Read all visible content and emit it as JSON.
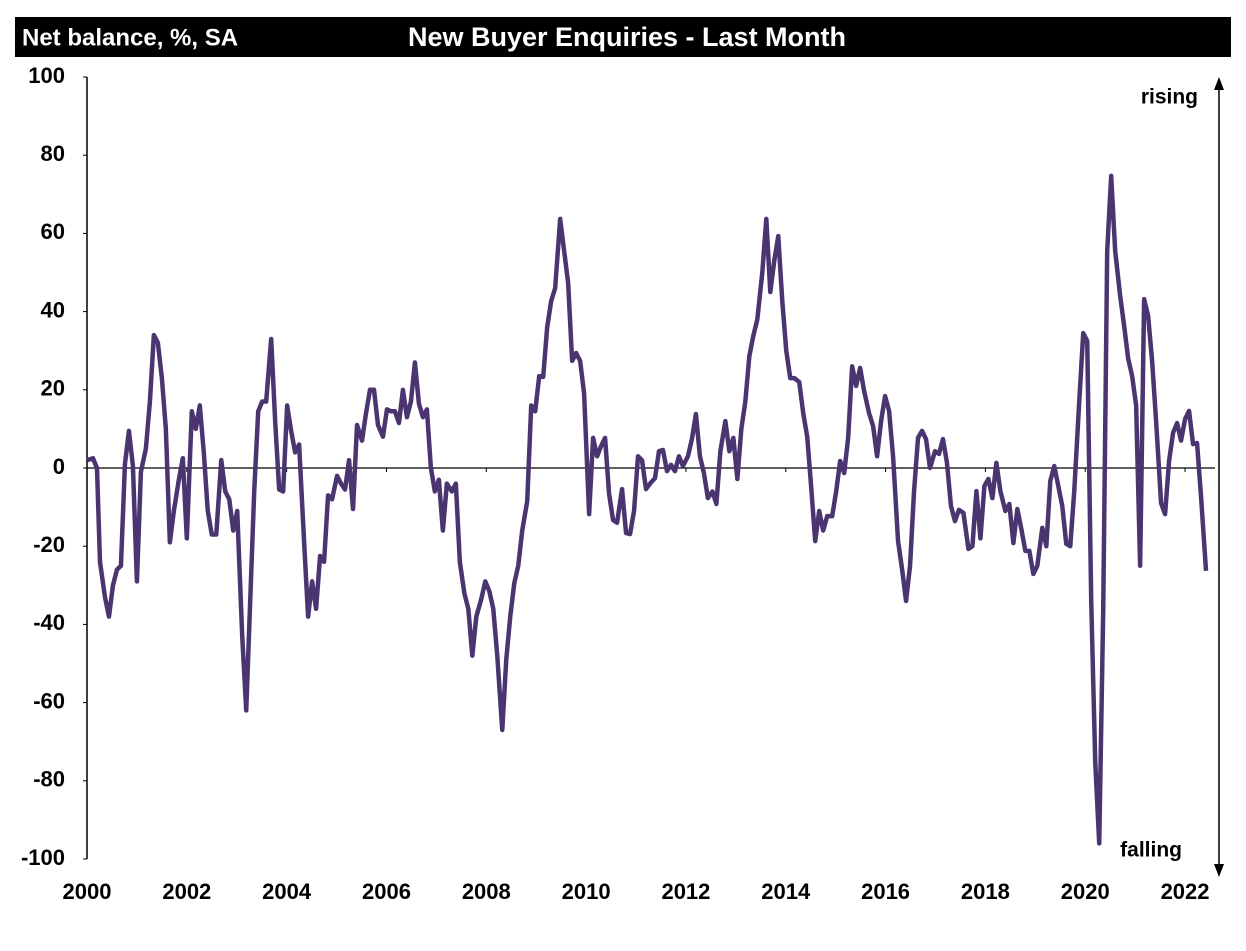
{
  "chart_data": {
    "type": "line",
    "title": "New Buyer Enquiries - Last Month",
    "ylabel": "Net balance, %, SA",
    "annotations": [
      "rising",
      "falling"
    ],
    "xlim": [
      2000,
      2022.6
    ],
    "xticks": [
      2000,
      2002,
      2004,
      2006,
      2008,
      2010,
      2012,
      2014,
      2016,
      2018,
      2020,
      2022
    ],
    "ylim": [
      -100,
      100
    ],
    "yticks": [
      -100,
      -80,
      -60,
      -40,
      -20,
      0,
      20,
      40,
      60,
      80,
      100
    ],
    "grid": false,
    "series": [
      {
        "color": "#4a3570",
        "x": [
          2000.0,
          2000.12,
          2000.2,
          2000.26,
          2000.36,
          2000.44,
          2000.52,
          2000.6,
          2000.68,
          2000.76,
          2000.84,
          2000.92,
          2001.0,
          2001.08,
          2001.18,
          2001.26,
          2001.34,
          2001.42,
          2001.5,
          2001.58,
          2001.66,
          2001.74,
          2001.84,
          2001.92,
          2002.0,
          2002.1,
          2002.18,
          2002.26,
          2002.34,
          2002.42,
          2002.5,
          2002.59,
          2002.69,
          2002.77,
          2002.85,
          2002.93,
          2003.01,
          2003.11,
          2003.19,
          2003.27,
          2003.35,
          2003.43,
          2003.51,
          2003.59,
          2003.69,
          2003.77,
          2003.85,
          2003.93,
          2004.01,
          2004.09,
          2004.17,
          2004.25,
          2004.35,
          2004.43,
          2004.51,
          2004.59,
          2004.67,
          2004.75,
          2004.83,
          2004.91,
          2005.01,
          2005.09,
          2005.17,
          2005.25,
          2005.33,
          2005.41,
          2005.51,
          2005.59,
          2005.67,
          2005.75,
          2005.83,
          2005.93,
          2006.01,
          2006.09,
          2006.17,
          2006.25,
          2006.33,
          2006.41,
          2006.49,
          2006.57,
          2006.65,
          2006.73,
          2006.81,
          2006.89,
          2006.97,
          2007.05,
          2007.13,
          2007.21,
          2007.31,
          2007.39,
          2007.47,
          2007.56,
          2007.64,
          2007.72,
          2007.8,
          2007.9,
          2007.98,
          2008.06,
          2008.14,
          2008.22,
          2008.32,
          2008.4,
          2008.48,
          2008.56,
          2008.64,
          2008.72,
          2008.82,
          2008.9,
          2008.98,
          2009.06,
          2009.14,
          2009.22,
          2009.3,
          2009.38,
          2009.48,
          2009.56,
          2009.64,
          2009.72,
          2009.8,
          2009.88,
          2009.96,
          2010.06,
          2010.14,
          2010.22,
          2010.3,
          2010.38,
          2010.46,
          2010.54,
          2010.62,
          2010.72,
          2010.8,
          2010.88,
          2010.96,
          2011.04,
          2011.12,
          2011.2,
          2011.28,
          2011.38,
          2011.46,
          2011.54,
          2011.62,
          2011.7,
          2011.78,
          2011.86,
          2011.94,
          2012.04,
          2012.12,
          2012.2,
          2012.28,
          2012.36,
          2012.44,
          2012.53,
          2012.61,
          2012.69,
          2012.79,
          2012.87,
          2012.95,
          2013.03,
          2013.11,
          2013.19,
          2013.27,
          2013.35,
          2013.43,
          2013.53,
          2013.61,
          2013.69,
          2013.77,
          2013.85,
          2013.93,
          2014.01,
          2014.09,
          2014.17,
          2014.27,
          2014.35,
          2014.43,
          2014.51,
          2014.59,
          2014.67,
          2014.75,
          2014.83,
          2014.93,
          2015.01,
          2015.09,
          2015.17,
          2015.25,
          2015.33,
          2015.41,
          2015.49,
          2015.57,
          2015.67,
          2015.75,
          2015.83,
          2015.91,
          2015.99,
          2016.07,
          2016.15,
          2016.25,
          2016.33,
          2016.41,
          2016.49,
          2016.57,
          2016.65,
          2016.73,
          2016.81,
          2016.89,
          2016.99,
          2017.07,
          2017.15,
          2017.23,
          2017.31,
          2017.39,
          2017.47,
          2017.56,
          2017.66,
          2017.74,
          2017.82,
          2017.9,
          2017.98,
          2018.06,
          2018.14,
          2018.22,
          2018.3,
          2018.4,
          2018.48,
          2018.56,
          2018.64,
          2018.72,
          2018.8,
          2018.88,
          2018.96,
          2019.04,
          2019.14,
          2019.22,
          2019.3,
          2019.38,
          2019.46,
          2019.54,
          2019.62,
          2019.7,
          2019.78,
          2019.88,
          2019.96,
          2020.04,
          2020.12,
          2020.2,
          2020.28,
          2020.36,
          2020.44,
          2020.52,
          2020.6,
          2020.7,
          2020.78,
          2020.86,
          2020.94,
          2021.02,
          2021.1,
          2021.18,
          2021.26,
          2021.34,
          2021.42,
          2021.52,
          2021.6,
          2021.68,
          2021.76,
          2021.84,
          2021.92,
          2022.0,
          2022.08,
          2022.16,
          2022.24,
          2022.32,
          2022.42
        ],
        "values": [
          2,
          2.5,
          0,
          -24,
          -33,
          -38,
          -30,
          -26,
          -25,
          1,
          9.5,
          0.5,
          -29,
          -1,
          5,
          17,
          34,
          32,
          23,
          10,
          -19,
          -11,
          -3,
          2.5,
          -18,
          14.5,
          10,
          16,
          4,
          -11,
          -17,
          -17,
          2,
          -6,
          -8,
          -16,
          -11,
          -43,
          -62,
          -34,
          -6,
          14.5,
          17,
          17,
          33,
          12,
          -5.5,
          -6,
          16,
          9.5,
          4,
          6,
          -19,
          -38,
          -29,
          -36,
          -22.5,
          -24,
          -7,
          -8,
          -2,
          -4,
          -5.5,
          2,
          -10.5,
          11,
          7,
          14,
          20,
          20,
          11,
          8,
          15,
          14.5,
          14.5,
          11.5,
          20,
          13,
          17,
          27,
          16.5,
          13,
          15,
          0,
          -6,
          -3,
          -16,
          -4,
          -6,
          -4,
          -24,
          -32,
          -36,
          -48,
          -38,
          -33.5,
          -29,
          -31.5,
          -36,
          -48,
          -67,
          -49,
          -38,
          -29.5,
          -25,
          -16,
          -8.5,
          16,
          14.5,
          23.5,
          23.3,
          36,
          42.7,
          46,
          63.7,
          55.5,
          47.3,
          27.4,
          29.4,
          27.4,
          19,
          -11.8,
          7.7,
          3,
          5.6,
          7.7,
          -6.6,
          -13.3,
          -14,
          -5.4,
          -16.6,
          -16.9,
          -11,
          3,
          2,
          -5.4,
          -4,
          -2.6,
          4.3,
          4.6,
          -0.8,
          0.8,
          -0.8,
          3,
          0.5,
          3,
          7.4,
          13.8,
          3,
          -1.3,
          -7.7,
          -6,
          -9.2,
          4.3,
          12,
          4.3,
          7.7,
          -2.8,
          10,
          17,
          28.6,
          33.8,
          38,
          50,
          63.7,
          45,
          53,
          59.3,
          42.7,
          30,
          23,
          23,
          22,
          14,
          8,
          -5,
          -18.7,
          -11,
          -16,
          -12.3,
          -12.3,
          -6,
          1.8,
          -1.3,
          7.7,
          26,
          21,
          25.6,
          19.7,
          14,
          10.7,
          3,
          12,
          18.4,
          14.6,
          3,
          -18.7,
          -25.8,
          -34,
          -25,
          -6,
          7.7,
          9.5,
          7.4,
          0,
          4.3,
          3.6,
          7.4,
          1.3,
          -9.7,
          -13.6,
          -10.7,
          -11.5,
          -20.7,
          -20,
          -5.9,
          -18,
          -4.6,
          -2.8,
          -7.7,
          1.3,
          -5.9,
          -11,
          -9.2,
          -19.2,
          -10.5,
          -15.6,
          -21.2,
          -21.2,
          -27.1,
          -25,
          -15.3,
          -20,
          -3.3,
          0.5,
          -4.6,
          -9.7,
          -19.4,
          -20,
          -5.9,
          17,
          34.5,
          32.5,
          -34,
          -75,
          -96,
          -36.6,
          55.5,
          74.7,
          55.5,
          44,
          36.3,
          28,
          23.5,
          16,
          -25,
          43.2,
          38.9,
          27.4,
          12,
          -9,
          -11.8,
          1.8,
          9,
          11.5,
          7,
          12.5,
          14.6,
          6.1,
          6.4,
          -7.2,
          -26.3
        ]
      }
    ]
  }
}
